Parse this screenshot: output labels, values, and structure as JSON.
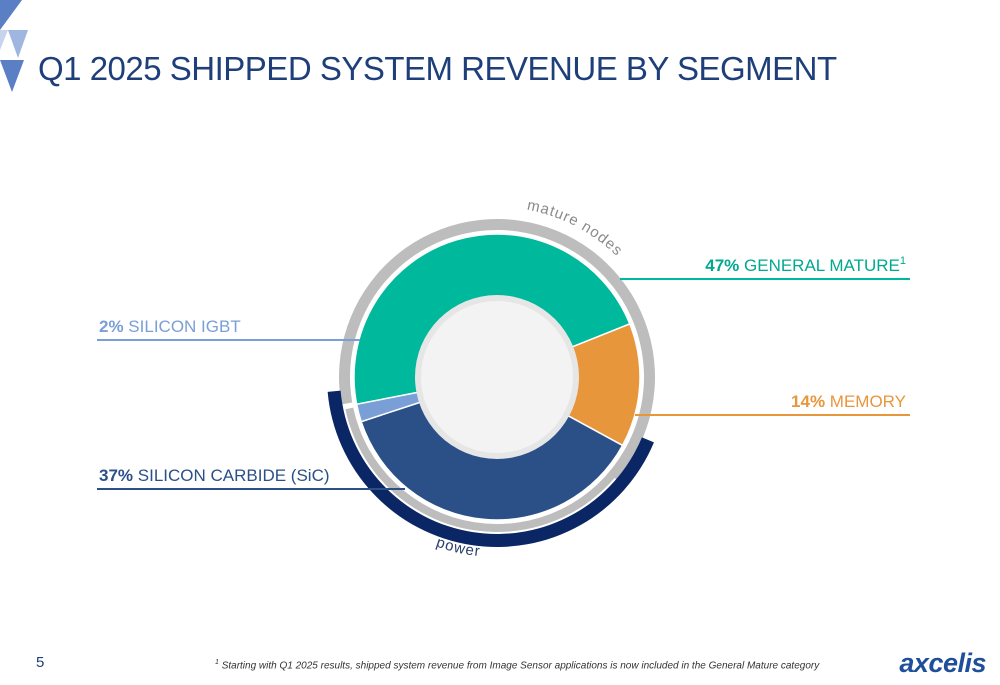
{
  "slide": {
    "title": "Q1 2025 SHIPPED SYSTEM REVENUE BY SEGMENT",
    "page_number": "5",
    "footnote_marker": "1",
    "footnote_text": "Starting with Q1 2025 results, shipped system revenue from Image Sensor applications is now included in the General Mature category",
    "logo_text": "axcelis"
  },
  "chart_data": {
    "type": "pie",
    "variant": "donut",
    "title": "Q1 2025 SHIPPED SYSTEM REVENUE BY SEGMENT",
    "slices": [
      {
        "name": "GENERAL MATURE",
        "value": 47,
        "pct_label": "47%",
        "superscript": "1",
        "color": "#00b89c"
      },
      {
        "name": "MEMORY",
        "value": 14,
        "pct_label": "14%",
        "superscript": "",
        "color": "#e8963c"
      },
      {
        "name": "SILICON CARBIDE (SiC)",
        "value": 37,
        "pct_label": "37%",
        "superscript": "",
        "color": "#2b4f87"
      },
      {
        "name": "SILICON IGBT",
        "value": 2,
        "pct_label": "2%",
        "superscript": "",
        "color": "#7a9fd6"
      }
    ],
    "groups": [
      {
        "name": "mature nodes",
        "members": [
          "GENERAL MATURE",
          "MEMORY"
        ],
        "color": "#bdbdbd"
      },
      {
        "name": "power",
        "members": [
          "SILICON CARBIDE (SiC)",
          "SILICON IGBT"
        ],
        "color": "#0b2664"
      }
    ],
    "legend": "callouts"
  }
}
